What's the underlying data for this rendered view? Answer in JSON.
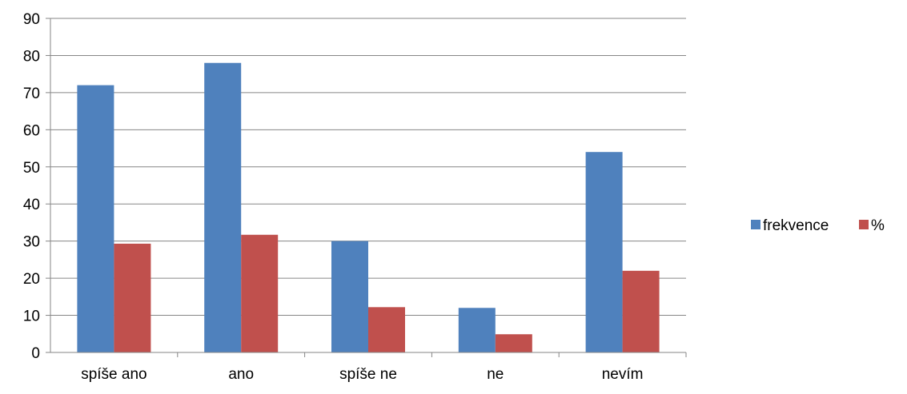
{
  "chart_data": {
    "type": "bar",
    "categories": [
      "spíše ano",
      "ano",
      "spíše ne",
      "ne",
      "nevím"
    ],
    "series": [
      {
        "name": "frekvence",
        "color": "#4F81BD",
        "values": [
          72,
          78,
          30,
          12,
          54
        ]
      },
      {
        "name": "%",
        "color": "#C0504D",
        "values": [
          29.3,
          31.7,
          12.2,
          4.9,
          22
        ]
      }
    ],
    "ylim": [
      0,
      90
    ],
    "yticks": [
      0,
      10,
      20,
      30,
      40,
      50,
      60,
      70,
      80,
      90
    ],
    "ytick_labels": [
      "0",
      "10",
      "20",
      "30",
      "40",
      "50",
      "60",
      "70",
      "80",
      "90"
    ],
    "grid": true,
    "legend_position": "right",
    "title": "",
    "xlabel": "",
    "ylabel": ""
  }
}
